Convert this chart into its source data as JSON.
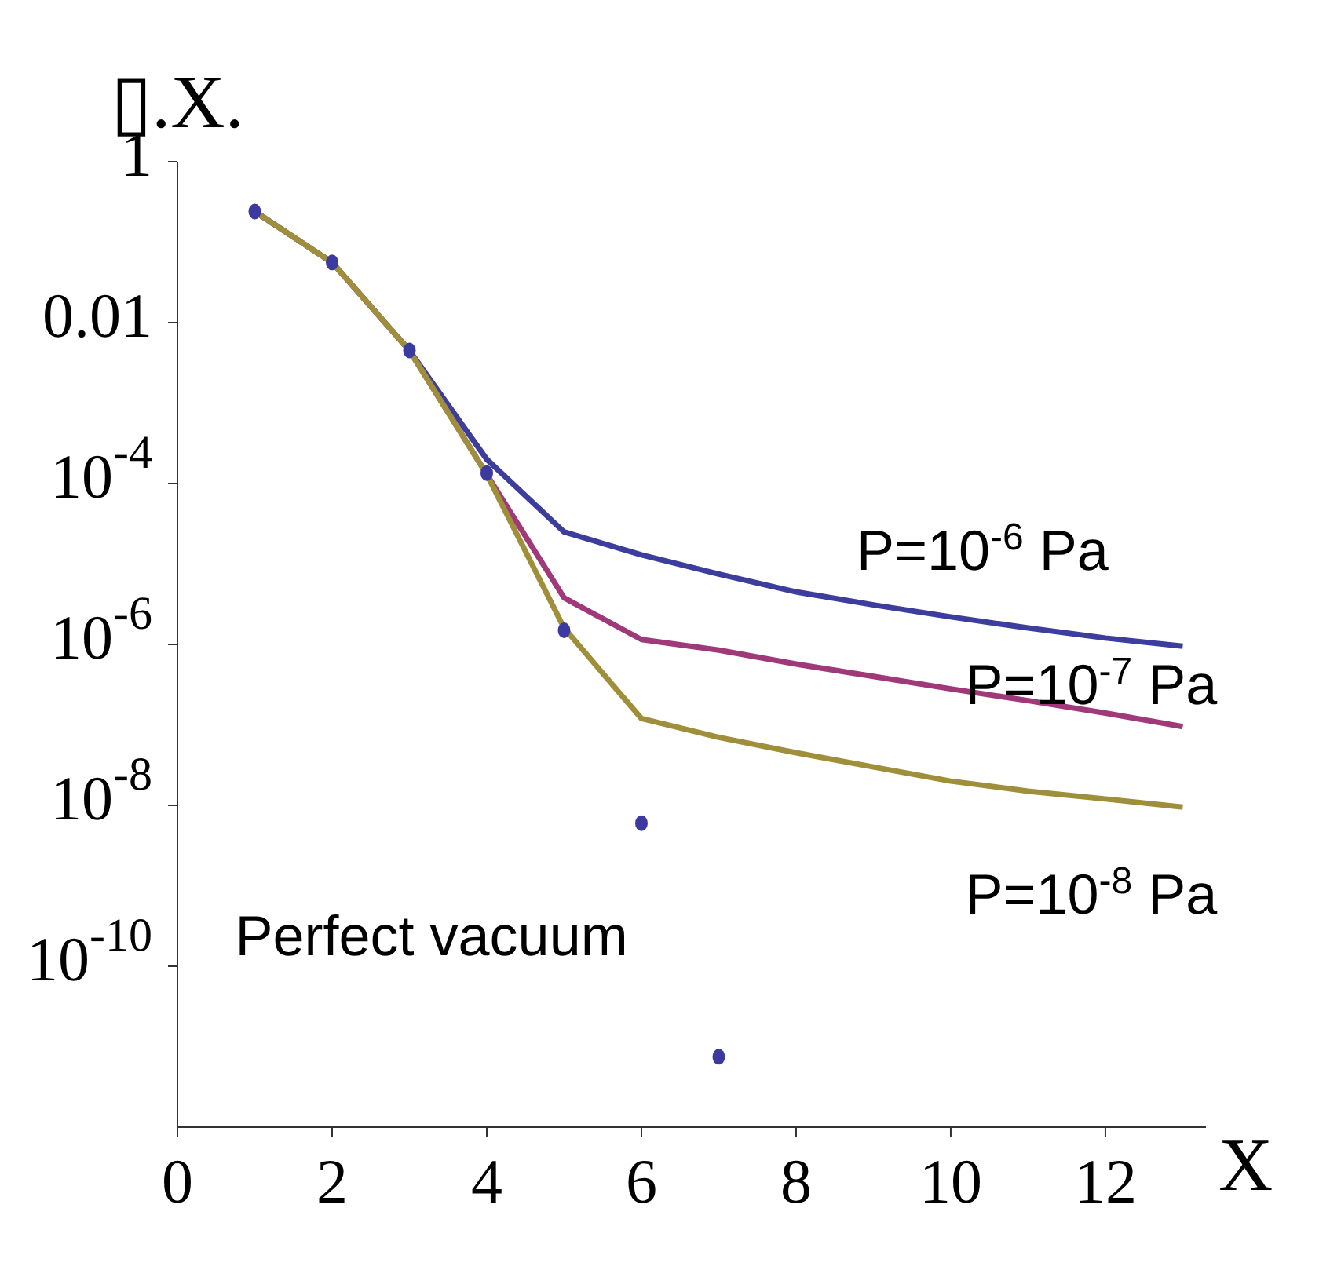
{
  "chart_data": {
    "type": "line",
    "xlabel": "X",
    "ylabel": "▯.X.",
    "log": "y",
    "grid": false,
    "legend": false,
    "marker": "none",
    "line_style": "solid",
    "xlim": [
      0,
      13.3
    ],
    "xticks": [
      0,
      2,
      4,
      6,
      8,
      10,
      12
    ],
    "ylim": [
      1e-12,
      1
    ],
    "yticks": [
      1,
      0.01,
      {
        "value": 0.0001,
        "label": "10$^{-4}$"
      },
      {
        "value": 1e-06,
        "label": "10$^{-6}$"
      },
      {
        "value": 1e-08,
        "label": "10$^{-8}$"
      },
      {
        "value": 1e-10,
        "label": "10$^{-10}$"
      }
    ],
    "series": [
      {
        "name": "P=10$^{-6}$ Pa",
        "color": "#3d3d9e",
        "x": [
          1,
          2,
          3,
          4,
          5,
          6,
          7,
          8,
          9,
          10,
          11,
          12,
          13
        ],
        "values": [
          0.24,
          0.056,
          0.0045,
          0.0002,
          2.5e-05,
          1.3e-05,
          7.5e-06,
          4.5e-06,
          3.1e-06,
          2.2e-06,
          1.6e-06,
          1.2e-06,
          9.5e-07
        ]
      },
      {
        "name": "P=10$^{-7}$ Pa",
        "color": "#a0397a",
        "x": [
          1,
          2,
          3,
          4,
          5,
          6,
          7,
          8,
          9,
          10,
          11,
          12,
          13
        ],
        "values": [
          0.24,
          0.056,
          0.0045,
          0.00013,
          3.8e-06,
          1.15e-06,
          8.5e-07,
          5.7e-07,
          4e-07,
          2.8e-07,
          2e-07,
          1.4e-07,
          9.5e-08
        ]
      },
      {
        "name": "P=10$^{-8}$ Pa",
        "color": "#a08f3a",
        "x": [
          1,
          2,
          3,
          4,
          5,
          6,
          7,
          8,
          9,
          10,
          11,
          12,
          13
        ],
        "values": [
          0.24,
          0.056,
          0.0045,
          0.00013,
          1.6e-06,
          1.2e-07,
          7e-08,
          4.5e-08,
          3e-08,
          2e-08,
          1.5e-08,
          1.2e-08,
          9.5e-09
        ]
      },
      {
        "name": "Perfect vacuum",
        "type": "scatter",
        "marker": "circle",
        "color": "#3a3aa0",
        "x": [
          1,
          2,
          3,
          4,
          5,
          6,
          7
        ],
        "values": [
          0.24,
          0.056,
          0.0045,
          0.000135,
          1.5e-06,
          6e-09,
          7.5e-12
        ]
      }
    ]
  }
}
